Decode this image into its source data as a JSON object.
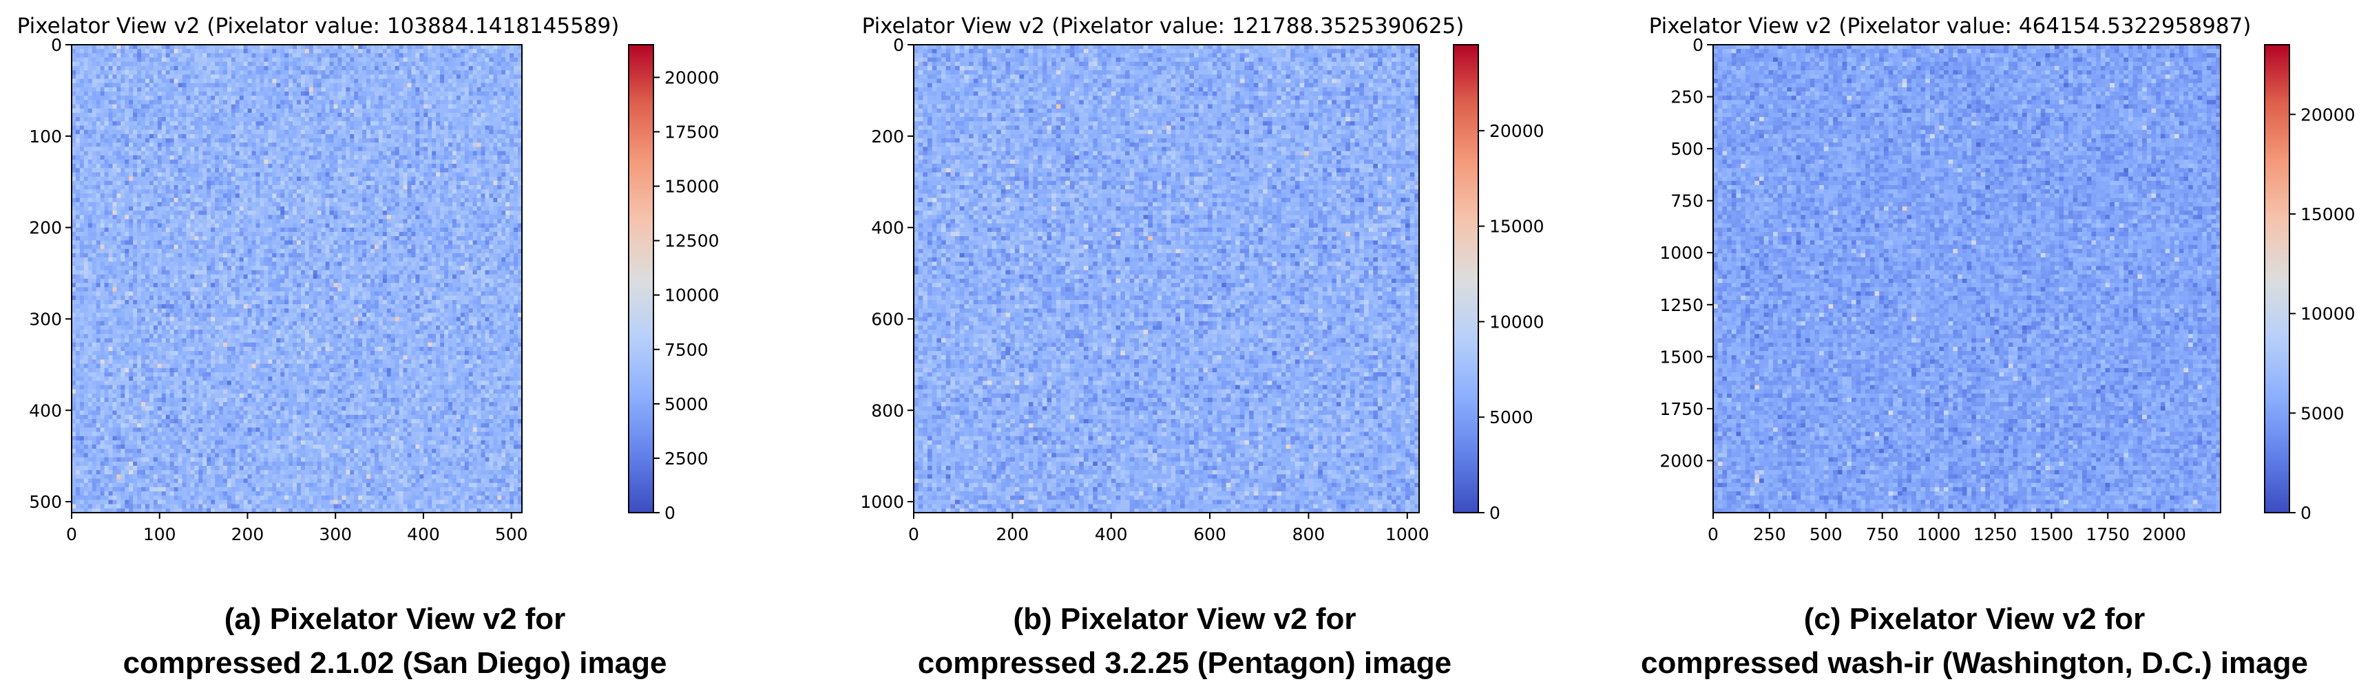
{
  "chart_data": [
    {
      "type": "heatmap",
      "title": "Pixelator View v2 (Pixelator value: 103884.1418145589)",
      "caption": [
        "(a) Pixelator View v2  for",
        "compressed 2.1.02 (San Diego) image"
      ],
      "xlim": [
        0,
        512
      ],
      "ylim": [
        0,
        512
      ],
      "xticks": [
        0,
        100,
        200,
        300,
        400,
        500
      ],
      "yticks": [
        0,
        100,
        200,
        300,
        400,
        500
      ],
      "colorbar": {
        "min": 0,
        "max": 21500,
        "ticks": [
          0,
          2500,
          5000,
          7500,
          10000,
          12500,
          15000,
          17500,
          20000
        ]
      },
      "colormap": "coolwarm",
      "typical_value_range": [
        3000,
        9000
      ]
    },
    {
      "type": "heatmap",
      "title": "Pixelator View v2 (Pixelator value: 121788.3525390625)",
      "caption": [
        "(b) Pixelator View v2  for",
        "compressed 3.2.25 (Pentagon) image"
      ],
      "xlim": [
        0,
        1024
      ],
      "ylim": [
        0,
        1024
      ],
      "xticks": [
        0,
        200,
        400,
        600,
        800,
        1000
      ],
      "yticks": [
        0,
        200,
        400,
        600,
        800,
        1000
      ],
      "colorbar": {
        "min": 0,
        "max": 24500,
        "ticks": [
          0,
          5000,
          10000,
          15000,
          20000
        ]
      },
      "colormap": "coolwarm",
      "typical_value_range": [
        3000,
        10000
      ]
    },
    {
      "type": "heatmap",
      "title": "Pixelator View v2 (Pixelator value: 464154.5322958987)",
      "caption": [
        "(c) Pixelator View v2  for",
        "compressed wash-ir (Washington, D.C.) image"
      ],
      "xlim": [
        0,
        2250
      ],
      "ylim": [
        0,
        2250
      ],
      "xticks": [
        0,
        250,
        500,
        750,
        1000,
        1250,
        1500,
        1750,
        2000
      ],
      "yticks": [
        0,
        250,
        500,
        750,
        1000,
        1250,
        1500,
        1750,
        2000
      ],
      "colorbar": {
        "min": 0,
        "max": 23500,
        "ticks": [
          0,
          5000,
          10000,
          15000,
          20000
        ]
      },
      "colormap": "coolwarm",
      "typical_value_range": [
        2500,
        8000
      ]
    }
  ]
}
